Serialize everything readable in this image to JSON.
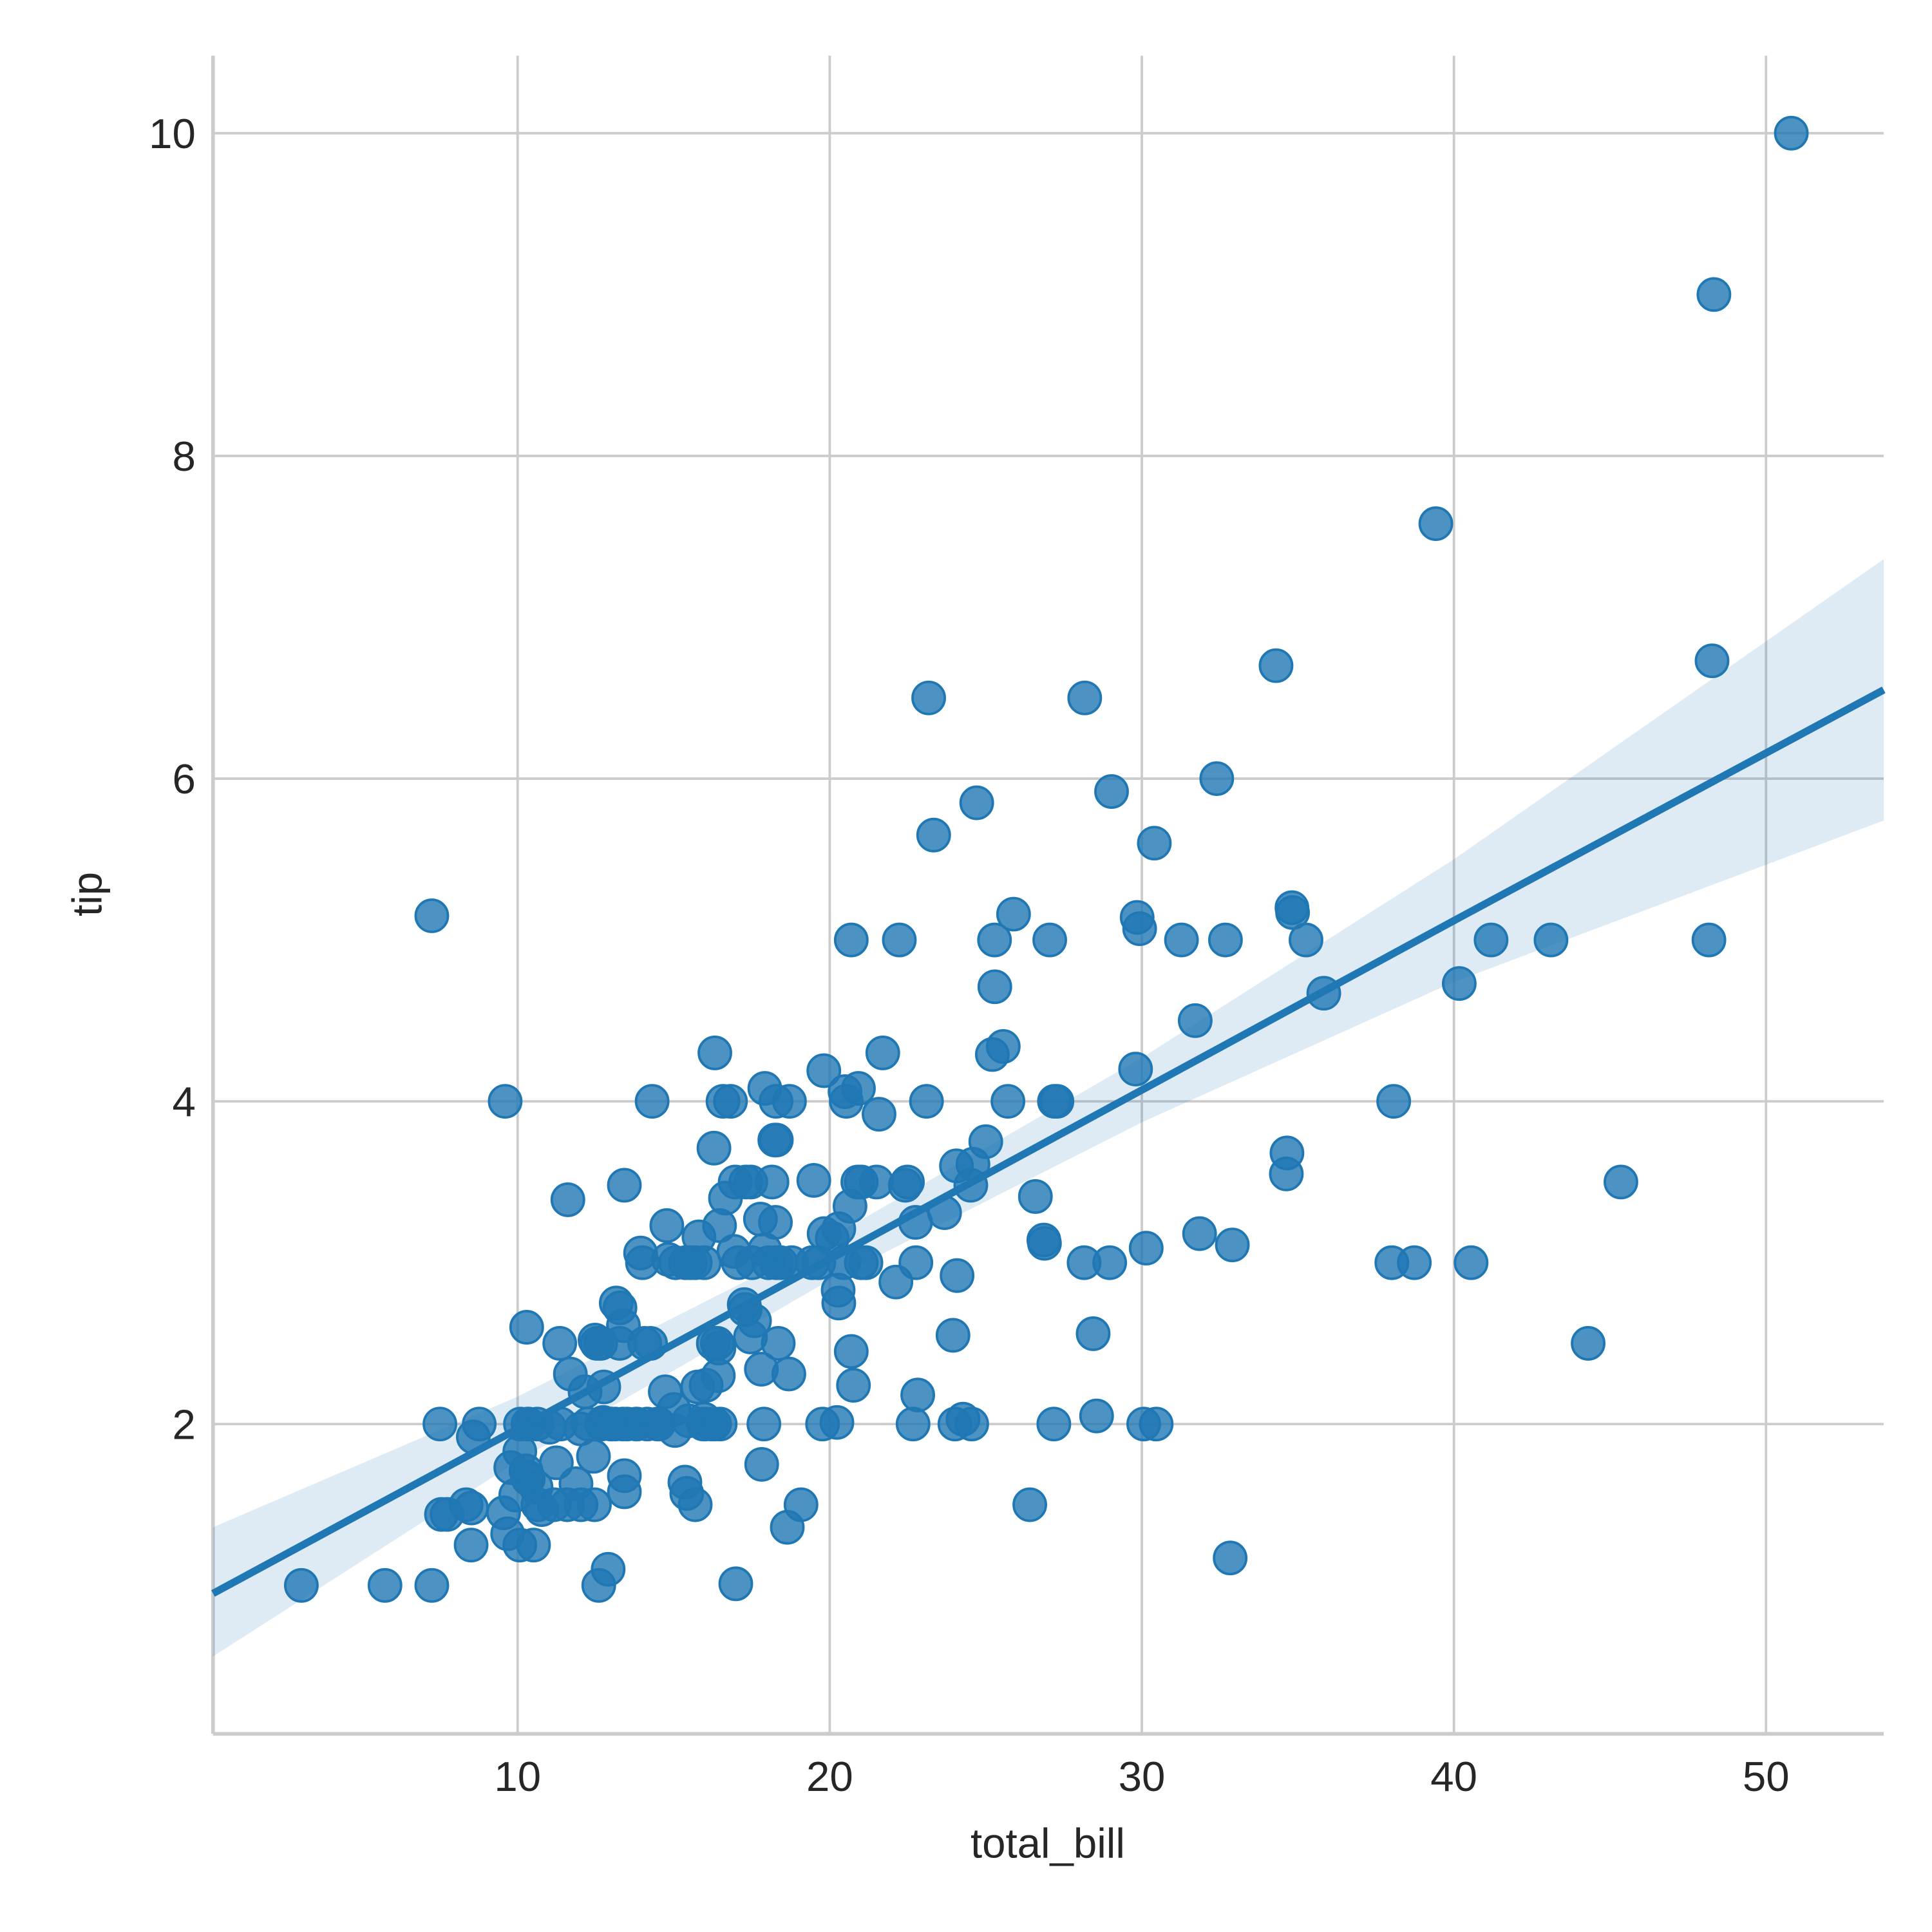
{
  "chart_data": {
    "type": "scatter",
    "xlabel": "total_bill",
    "ylabel": "tip",
    "xlim": [
      0.24,
      53.77
    ],
    "ylim": [
      0.08,
      10.48
    ],
    "xticks": [
      10,
      20,
      30,
      40,
      50
    ],
    "yticks": [
      2,
      4,
      6,
      8,
      10
    ],
    "grid": true,
    "series": [
      {
        "color": "#1f77b4",
        "x": [
          16.99,
          10.34,
          21.01,
          23.68,
          24.59,
          25.29,
          8.77,
          26.88,
          15.04,
          14.78,
          10.27,
          35.26,
          15.42,
          18.43,
          14.83,
          21.58,
          10.33,
          16.29,
          16.97,
          20.65,
          17.92,
          20.29,
          15.77,
          39.42,
          19.82,
          17.81,
          13.37,
          12.69,
          21.7,
          19.65,
          9.55,
          18.35,
          15.06,
          20.69,
          17.78,
          24.06,
          16.31,
          16.93,
          18.69,
          31.27,
          16.04,
          17.46,
          13.94,
          9.68,
          30.4,
          18.29,
          22.23,
          32.4,
          28.55,
          18.04,
          12.54,
          10.29,
          34.81,
          9.94,
          25.56,
          19.49,
          38.01,
          26.41,
          11.24,
          48.27,
          20.29,
          13.81,
          11.02,
          18.29,
          17.59,
          20.08,
          16.45,
          3.07,
          20.23,
          15.01,
          12.02,
          17.07,
          26.86,
          25.28,
          14.73,
          10.51,
          17.92,
          27.2,
          22.76,
          17.29,
          19.44,
          16.66,
          10.07,
          32.68,
          15.98,
          34.83,
          13.03,
          18.28,
          24.71,
          21.16,
          28.97,
          22.49,
          5.75,
          16.32,
          22.75,
          40.17,
          27.28,
          12.03,
          21.01,
          12.46,
          11.35,
          15.38,
          44.3,
          22.42,
          20.92,
          15.36,
          20.49,
          25.21,
          18.24,
          14.31,
          14.0,
          7.25,
          38.07,
          23.95,
          25.71,
          17.31,
          29.93,
          10.65,
          12.43,
          24.08,
          11.69,
          13.42,
          14.26,
          15.95,
          12.48,
          29.8,
          8.52,
          14.52,
          11.38,
          22.82,
          19.08,
          20.27,
          11.17,
          12.26,
          18.26,
          8.51,
          10.33,
          14.15,
          16.0,
          13.16,
          17.47,
          34.3,
          41.19,
          27.05,
          16.43,
          8.35,
          18.64,
          11.87,
          9.78,
          7.51,
          14.07,
          13.13,
          17.26,
          24.55,
          19.77,
          29.85,
          48.17,
          25.0,
          13.39,
          16.49,
          21.5,
          12.66,
          16.21,
          13.81,
          17.51,
          24.52,
          20.76,
          31.71,
          10.59,
          10.63,
          50.81,
          15.81,
          7.25,
          31.85,
          16.82,
          32.9,
          17.89,
          14.48,
          9.6,
          34.63,
          34.65,
          23.33,
          45.35,
          23.17,
          40.55,
          20.69,
          20.9,
          30.46,
          18.15,
          23.1,
          15.69,
          19.81,
          28.44,
          15.48,
          16.58,
          7.56,
          10.34,
          43.11,
          13.0,
          13.51,
          18.71,
          12.74,
          13.0,
          16.4,
          20.53,
          16.47,
          26.59,
          38.73,
          24.27,
          12.76,
          30.06,
          25.89,
          48.33,
          13.27,
          28.17,
          12.9,
          28.15,
          11.59,
          7.74,
          30.14,
          12.16,
          13.42,
          8.58,
          15.98,
          13.42,
          16.27,
          10.09,
          20.45,
          13.28,
          22.12,
          24.01,
          15.69,
          11.61,
          10.77,
          15.53,
          10.07,
          12.6,
          32.83,
          35.83,
          29.03,
          27.18,
          22.67,
          17.82,
          18.78
        ],
        "values": [
          1.01,
          1.66,
          3.5,
          3.31,
          3.61,
          4.71,
          2.0,
          3.12,
          1.96,
          3.23,
          1.71,
          5.0,
          1.57,
          3.0,
          3.02,
          3.92,
          1.67,
          3.71,
          3.5,
          3.35,
          4.08,
          2.75,
          2.23,
          7.58,
          3.18,
          2.34,
          2.0,
          2.0,
          4.3,
          3.0,
          1.45,
          2.5,
          3.0,
          2.45,
          3.27,
          3.6,
          2.0,
          3.07,
          2.31,
          5.0,
          2.24,
          2.54,
          3.06,
          1.32,
          5.6,
          3.0,
          5.0,
          6.0,
          2.05,
          3.0,
          2.5,
          2.6,
          5.2,
          1.56,
          4.34,
          3.51,
          3.0,
          1.5,
          1.76,
          6.73,
          3.21,
          2.0,
          1.98,
          3.76,
          2.64,
          3.15,
          2.47,
          1.0,
          2.01,
          2.09,
          1.97,
          3.0,
          3.14,
          5.0,
          2.2,
          1.25,
          3.08,
          4.0,
          3.0,
          2.71,
          3.0,
          3.4,
          1.83,
          5.0,
          2.03,
          5.17,
          2.0,
          4.0,
          5.85,
          3.0,
          3.0,
          3.5,
          1.0,
          4.3,
          3.25,
          4.73,
          4.0,
          1.5,
          3.0,
          1.5,
          2.5,
          3.0,
          2.5,
          3.48,
          4.08,
          1.64,
          4.06,
          4.29,
          3.76,
          4.0,
          3.0,
          1.0,
          4.0,
          2.55,
          4.0,
          3.5,
          5.07,
          1.5,
          1.8,
          2.92,
          2.31,
          1.68,
          2.5,
          2.0,
          2.52,
          4.2,
          1.48,
          2.0,
          2.0,
          2.18,
          1.5,
          2.83,
          1.5,
          2.0,
          3.25,
          1.25,
          2.0,
          2.0,
          2.0,
          2.75,
          3.5,
          6.7,
          5.0,
          5.0,
          2.3,
          1.5,
          1.36,
          1.63,
          1.73,
          2.0,
          2.5,
          2.0,
          2.74,
          2.0,
          2.0,
          5.14,
          5.0,
          3.75,
          2.61,
          2.0,
          3.5,
          2.5,
          2.0,
          2.0,
          3.0,
          3.48,
          2.24,
          4.5,
          1.61,
          2.0,
          10.0,
          3.16,
          5.15,
          3.18,
          4.0,
          3.11,
          2.0,
          2.0,
          4.0,
          3.55,
          3.68,
          5.65,
          3.5,
          6.5,
          3.0,
          5.0,
          3.5,
          2.0,
          3.5,
          4.0,
          1.5,
          4.19,
          2.56,
          2.02,
          4.0,
          1.44,
          2.0,
          5.0,
          2.0,
          2.0,
          4.0,
          2.01,
          2.0,
          2.5,
          4.0,
          3.23,
          3.41,
          3.0,
          2.03,
          2.23,
          2.0,
          5.16,
          9.0,
          2.5,
          6.5,
          1.1,
          3.0,
          1.5,
          1.44,
          3.09,
          2.2,
          3.48,
          1.92,
          3.0,
          1.58,
          2.5,
          2.0,
          3.0,
          2.72,
          2.88,
          2.0,
          3.0,
          3.39,
          1.47,
          3.0,
          1.25,
          1.0,
          1.17,
          4.67,
          5.92,
          2.0,
          2.0,
          1.75,
          3.0
        ]
      }
    ],
    "fit": {
      "color": "#1f77b4",
      "x": [
        0.24,
        10,
        19.8,
        30,
        40,
        53.77
      ],
      "values": [
        0.95,
        1.97,
        3.0,
        4.07,
        5.12,
        6.55
      ],
      "lower": [
        0.56,
        1.77,
        2.87,
        3.87,
        4.74,
        5.74
      ],
      "upper": [
        1.36,
        2.17,
        3.13,
        4.27,
        5.5,
        7.36
      ]
    }
  }
}
